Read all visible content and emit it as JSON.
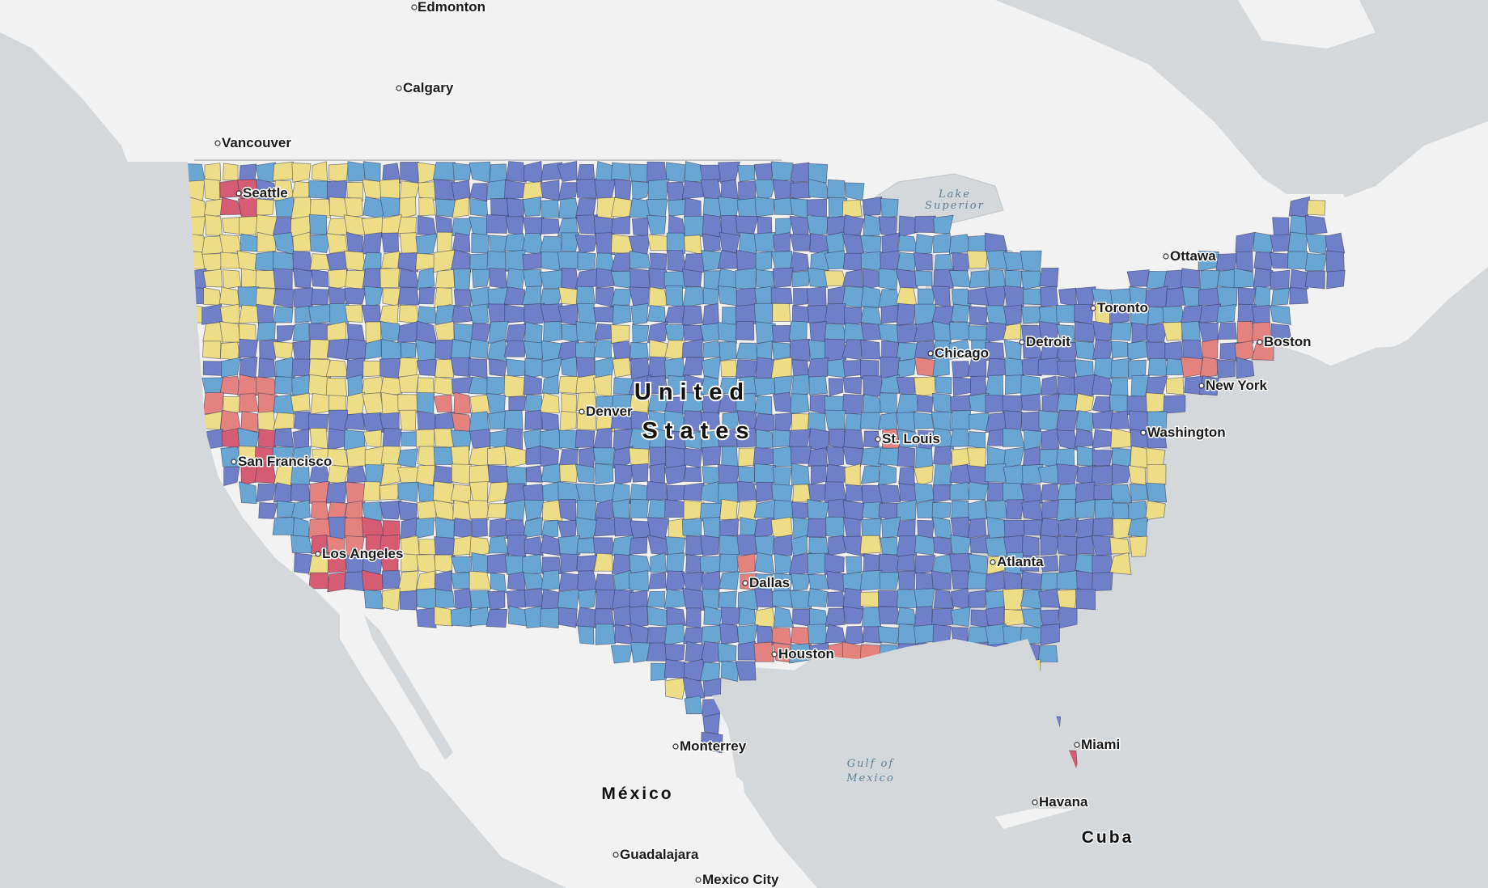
{
  "colors": {
    "water": "#d5d8da",
    "land": "#f2f2f2",
    "class_1": "#6f7fc8",
    "class_2": "#6aa6d3",
    "class_3": "#ecdd86",
    "class_4": "#e4827f",
    "class_5": "#d55c72"
  },
  "countries": {
    "us": [
      "United",
      "States"
    ],
    "mexico": "México",
    "cuba": "Cuba"
  },
  "water": {
    "lake_superior": [
      "Lake",
      "Superior"
    ],
    "gulf_of_mexico": [
      "Gulf of",
      "Mexico"
    ]
  },
  "cities": {
    "edmonton": "Edmonton",
    "calgary": "Calgary",
    "vancouver": "Vancouver",
    "seattle": "Seattle",
    "ottawa": "Ottawa",
    "toronto": "Toronto",
    "detroit": "Detroit",
    "boston": "Boston",
    "chicago": "Chicago",
    "new_york": "New York",
    "washington": "Washington",
    "st_louis": "St. Louis",
    "denver": "Denver",
    "san_francisco": "San Francisco",
    "los_angeles": "Los Angeles",
    "dallas": "Dallas",
    "atlanta": "Atlanta",
    "houston": "Houston",
    "miami": "Miami",
    "monterrey": "Monterrey",
    "havana": "Havana",
    "guadalajara": "Guadalajara",
    "mexico_city": "Mexico City"
  }
}
